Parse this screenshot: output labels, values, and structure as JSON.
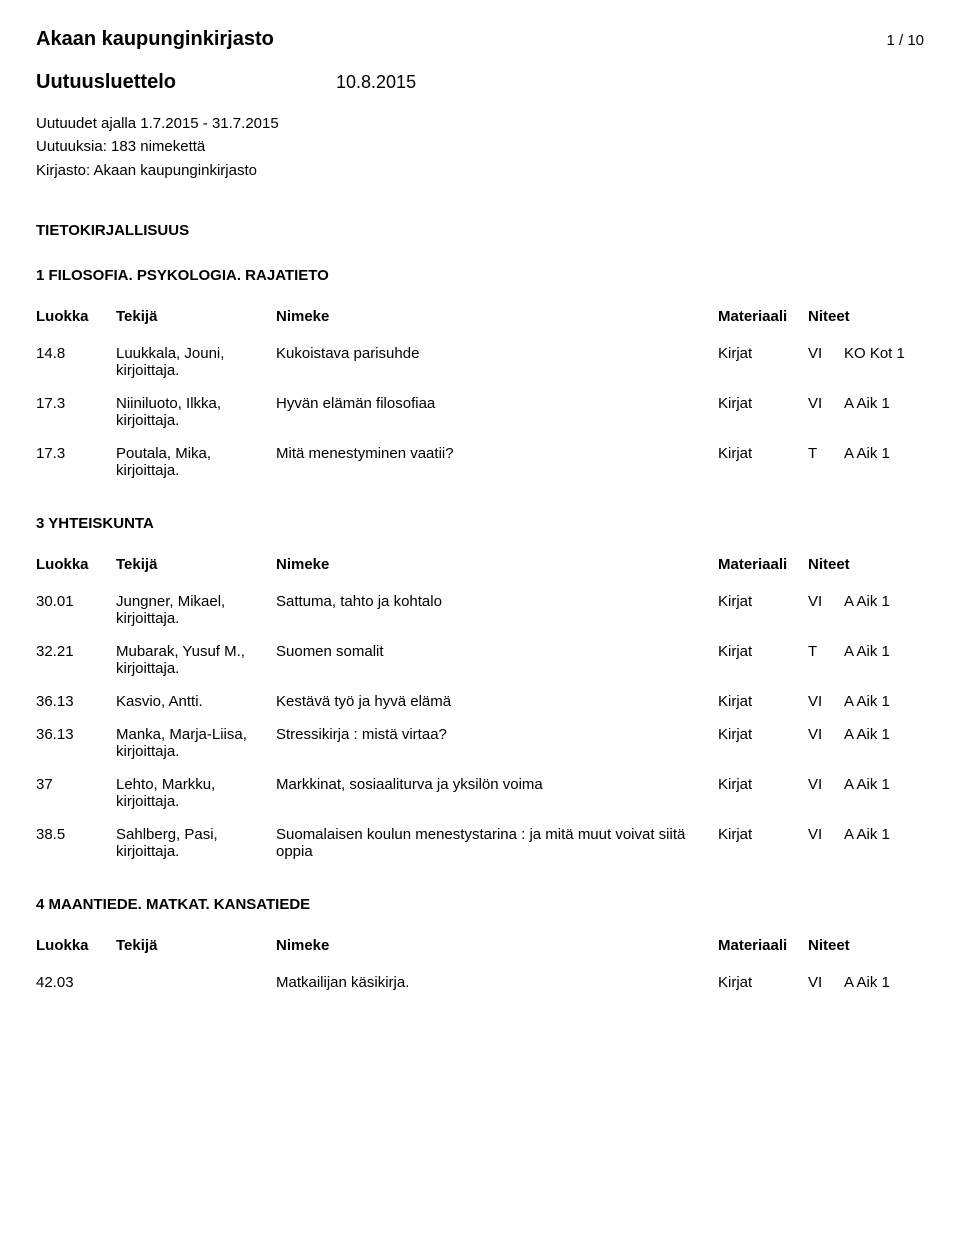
{
  "header": {
    "library": "Akaan kaupunginkirjasto",
    "page_indicator": "1 / 10",
    "subtitle": "Uutuusluettelo",
    "date": "10.8.2015"
  },
  "meta": {
    "range": "Uutuudet ajalla 1.7.2015 - 31.7.2015",
    "count": "Uutuuksia: 183 nimekettä",
    "library_line": "Kirjasto: Akaan kaupunginkirjasto"
  },
  "top_section": "TIETOKIRJALLISUUS",
  "columns": {
    "luokka": "Luokka",
    "tekija": "Tekijä",
    "nimeke": "Nimeke",
    "materiaali": "Materiaali",
    "niteet": "Niteet"
  },
  "sections": [
    {
      "title": "1 FILOSOFIA. PSYKOLOGIA. RAJATIETO",
      "rows": [
        {
          "luokka": "14.8",
          "tekija": "Luukkala, Jouni, kirjoittaja.",
          "nimeke": "Kukoistava parisuhde",
          "mat": "Kirjat",
          "n1": "VI",
          "n2": "KO Kot 1"
        },
        {
          "luokka": "17.3",
          "tekija": "Niiniluoto, Ilkka, kirjoittaja.",
          "nimeke": "Hyvän elämän filosofiaa",
          "mat": "Kirjat",
          "n1": "VI",
          "n2": "A Aik 1"
        },
        {
          "luokka": "17.3",
          "tekija": "Poutala, Mika, kirjoittaja.",
          "nimeke": "Mitä menestyminen vaatii?",
          "mat": "Kirjat",
          "n1": "T",
          "n2": "A Aik 1"
        }
      ]
    },
    {
      "title": "3 YHTEISKUNTA",
      "rows": [
        {
          "luokka": "30.01",
          "tekija": "Jungner, Mikael, kirjoittaja.",
          "nimeke": "Sattuma, tahto ja kohtalo",
          "mat": "Kirjat",
          "n1": "VI",
          "n2": "A Aik 1"
        },
        {
          "luokka": "32.21",
          "tekija": "Mubarak, Yusuf M., kirjoittaja.",
          "nimeke": "Suomen somalit",
          "mat": "Kirjat",
          "n1": "T",
          "n2": "A Aik 1"
        },
        {
          "luokka": "36.13",
          "tekija": "Kasvio, Antti.",
          "nimeke": "Kestävä työ ja hyvä elämä",
          "mat": "Kirjat",
          "n1": "VI",
          "n2": "A Aik 1"
        },
        {
          "luokka": "36.13",
          "tekija": "Manka, Marja-Liisa, kirjoittaja.",
          "nimeke": "Stressikirja : mistä virtaa?",
          "mat": "Kirjat",
          "n1": "VI",
          "n2": "A Aik 1"
        },
        {
          "luokka": "37",
          "tekija": "Lehto, Markku, kirjoittaja.",
          "nimeke": "Markkinat, sosiaaliturva ja yksilön voima",
          "mat": "Kirjat",
          "n1": "VI",
          "n2": "A Aik 1"
        },
        {
          "luokka": "38.5",
          "tekija": "Sahlberg, Pasi, kirjoittaja.",
          "nimeke": "Suomalaisen koulun menestystarina : ja mitä muut voivat siitä oppia",
          "mat": "Kirjat",
          "n1": "VI",
          "n2": "A Aik 1"
        }
      ]
    },
    {
      "title": "4 MAANTIEDE. MATKAT. KANSATIEDE",
      "rows": [
        {
          "luokka": "42.03",
          "tekija": "",
          "nimeke": "Matkailijan käsikirja.",
          "mat": "Kirjat",
          "n1": "VI",
          "n2": "A Aik 1"
        }
      ]
    }
  ]
}
